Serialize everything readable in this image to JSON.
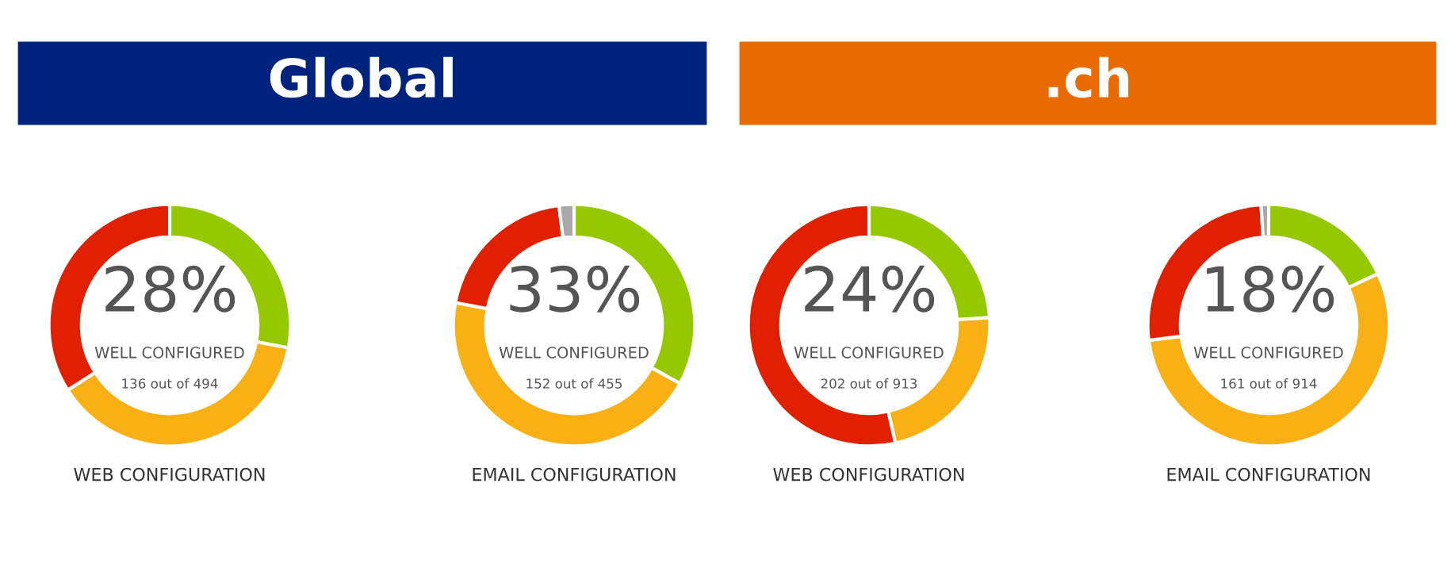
{
  "chart_data": [
    {
      "type": "donut",
      "title": "Global",
      "xlabel": "WEB CONFIGURATION",
      "annotations": [
        "28%",
        "WELL CONFIGURED",
        "136 out of 494"
      ],
      "categories": [
        null,
        null,
        null
      ],
      "values": [
        28,
        38,
        34
      ],
      "colors": [
        "#96c800",
        "#f8b014",
        "#e02000"
      ]
    },
    {
      "type": "donut",
      "xlabel": "EMAIL CONFIGURATION",
      "annotations": [
        "33%",
        "WELL CONFIGURED",
        "152 out of 455"
      ],
      "categories": [
        null,
        null,
        null,
        null
      ],
      "values": [
        33,
        45,
        20,
        2
      ],
      "colors": [
        "#96c800",
        "#f8b014",
        "#e02000",
        "#a8a8a8"
      ]
    },
    {
      "type": "donut",
      "title": ".ch",
      "xlabel": "WEB CONFIGURATION",
      "annotations": [
        "24%",
        "WELL CONFIGURED",
        "202 out of 913"
      ],
      "categories": [
        null,
        null,
        null
      ],
      "values": [
        24,
        22.5,
        53.5
      ],
      "colors": [
        "#96c800",
        "#f8b014",
        "#e02000"
      ]
    },
    {
      "type": "donut",
      "xlabel": "EMAIL CONFIGURATION",
      "annotations": [
        "18%",
        "WELL CONFIGURED",
        "161 out of 914"
      ],
      "categories": [
        null,
        null,
        null,
        null
      ],
      "values": [
        18,
        55,
        26,
        1
      ],
      "colors": [
        "#96c800",
        "#f8b014",
        "#e02000",
        "#a8a8a8"
      ]
    }
  ]
}
